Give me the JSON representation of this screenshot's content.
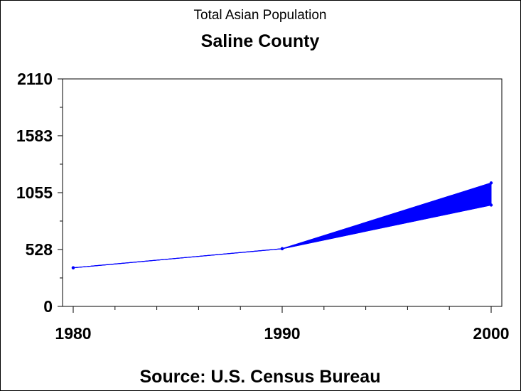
{
  "chart_data": {
    "type": "area",
    "title": "Total Asian Population",
    "subtitle": "Saline County",
    "source": "Source: U.S. Census Bureau",
    "xlabel": "",
    "ylabel": "",
    "x_ticks": [
      "1980",
      "1990",
      "2000"
    ],
    "y_ticks": [
      "0",
      "528",
      "1055",
      "1583",
      "2110"
    ],
    "xlim": [
      1980,
      2000
    ],
    "ylim": [
      0,
      2110
    ],
    "grid": false,
    "series": [
      {
        "points": [
          {
            "x": 1980,
            "y": 358
          },
          {
            "x": 1990,
            "y": 535
          },
          {
            "x": 2000,
            "y": 1145
          }
        ],
        "lower": [
          {
            "x": 1980,
            "y": 358
          },
          {
            "x": 1990,
            "y": 535
          },
          {
            "x": 2000,
            "y": 940
          }
        ]
      }
    ],
    "colors": {
      "series": "#0000ff",
      "axis": "#000000",
      "text": "#000000"
    }
  }
}
